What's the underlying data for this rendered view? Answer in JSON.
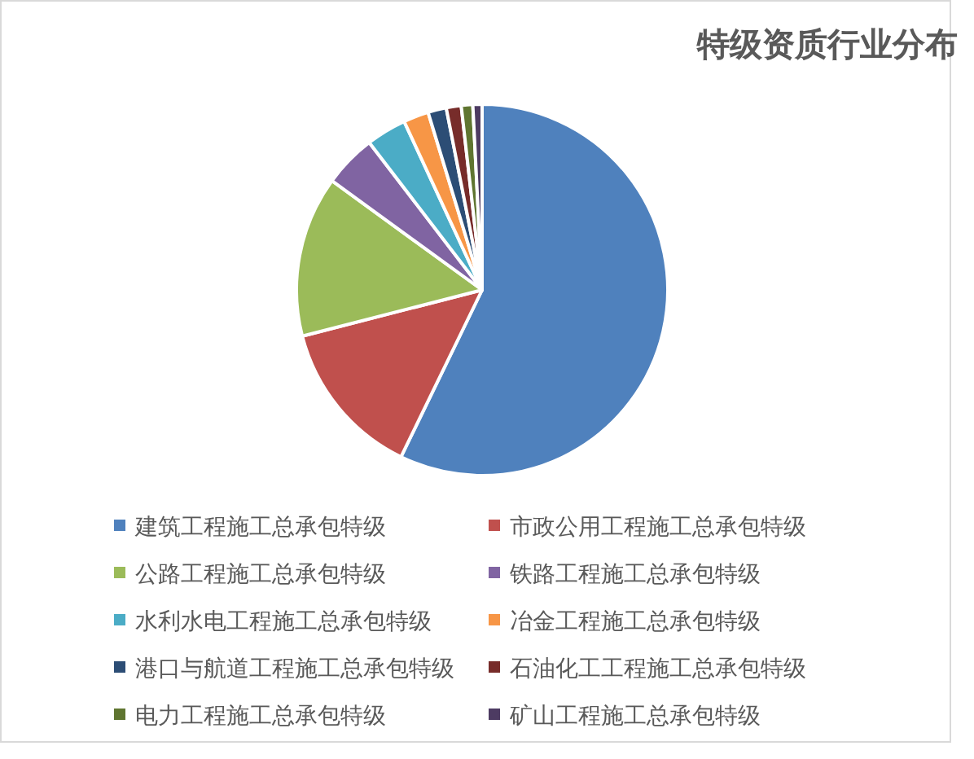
{
  "chart_data": {
    "type": "pie",
    "title": "特级资质行业分布",
    "categories": [
      "建筑工程施工总承包特级",
      "市政公用工程施工总承包特级",
      "公路工程施工总承包特级",
      "铁路工程施工总承包特级",
      "水利水电工程施工总承包特级",
      "冶金工程施工总承包特级",
      "港口与航道工程施工总承包特级",
      "石油化工工程施工总承包特级",
      "电力工程施工总承包特级",
      "矿山工程施工总承包特级"
    ],
    "values": [
      57.2,
      13.8,
      14.0,
      4.6,
      3.5,
      2.2,
      1.6,
      1.3,
      1.0,
      0.8
    ],
    "colors": [
      "#4f81bd",
      "#c0504d",
      "#9bbb59",
      "#8064a2",
      "#4bacc6",
      "#f79646",
      "#2c4d75",
      "#772c2a",
      "#5f7530",
      "#4d3b62"
    ],
    "legend": "bottom"
  }
}
